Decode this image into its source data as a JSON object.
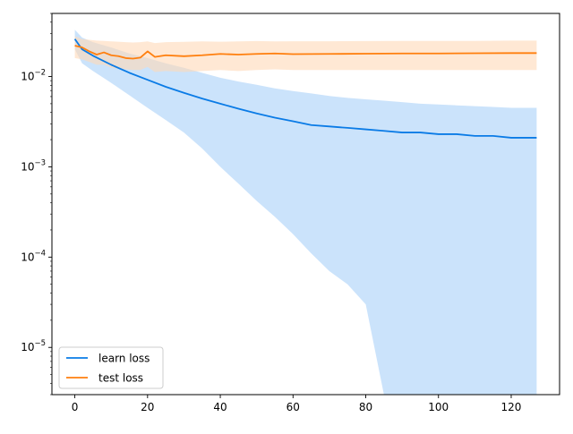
{
  "chart_data": {
    "type": "line",
    "title": "",
    "xlabel": "",
    "ylabel": "",
    "xlim": [
      -6.3,
      133.3
    ],
    "ylim": [
      3e-06,
      0.05
    ],
    "yscale": "log",
    "grid": false,
    "legend_position": "lower-left",
    "x_ticks": [
      0,
      20,
      40,
      60,
      80,
      100,
      120
    ],
    "x_tick_labels": [
      "0",
      "20",
      "40",
      "60",
      "80",
      "100",
      "120"
    ],
    "y_ticks": [
      1e-05,
      0.0001,
      0.001,
      0.01
    ],
    "y_tick_labels": [
      {
        "base": "10",
        "exp": "−5"
      },
      {
        "base": "10",
        "exp": "−4"
      },
      {
        "base": "10",
        "exp": "−3"
      },
      {
        "base": "10",
        "exp": "−2"
      }
    ],
    "series": [
      {
        "name": "learn loss",
        "color": "#0a7be6",
        "band_color": "#a8d1f8",
        "x": [
          0,
          2,
          5,
          10,
          15,
          20,
          25,
          30,
          35,
          40,
          45,
          50,
          55,
          60,
          65,
          70,
          75,
          80,
          85,
          90,
          95,
          100,
          105,
          110,
          115,
          120,
          127
        ],
        "y": [
          0.026,
          0.02,
          0.017,
          0.0135,
          0.011,
          0.0092,
          0.0077,
          0.0066,
          0.0057,
          0.005,
          0.0044,
          0.0039,
          0.0035,
          0.0032,
          0.0029,
          0.0028,
          0.0027,
          0.0026,
          0.0025,
          0.0024,
          0.0024,
          0.0023,
          0.0023,
          0.0022,
          0.0022,
          0.0021,
          0.0021
        ],
        "upper": [
          0.033,
          0.027,
          0.024,
          0.021,
          0.018,
          0.016,
          0.014,
          0.0125,
          0.011,
          0.0097,
          0.0088,
          0.0081,
          0.0074,
          0.0069,
          0.0065,
          0.0061,
          0.0058,
          0.0056,
          0.0054,
          0.0052,
          0.005,
          0.0049,
          0.0048,
          0.0047,
          0.0046,
          0.0045,
          0.0045
        ],
        "lower": [
          0.02,
          0.014,
          0.0115,
          0.0085,
          0.0062,
          0.0045,
          0.0033,
          0.0024,
          0.0016,
          0.001,
          0.00065,
          0.00042,
          0.00028,
          0.00018,
          0.00011,
          7e-05,
          5e-05,
          3e-05,
          3e-06,
          3e-06,
          3e-06,
          3e-06,
          3e-06,
          3e-06,
          3e-06,
          3e-06,
          3e-06
        ]
      },
      {
        "name": "test loss",
        "color": "#ff7f0e",
        "band_color": "#ffd9b8",
        "x": [
          0,
          2,
          4,
          6,
          8,
          10,
          12,
          14,
          16,
          18,
          20,
          22,
          25,
          30,
          35,
          40,
          45,
          50,
          55,
          60,
          70,
          80,
          90,
          100,
          110,
          120,
          127
        ],
        "y": [
          0.022,
          0.021,
          0.019,
          0.0175,
          0.0185,
          0.0172,
          0.0168,
          0.016,
          0.0158,
          0.0162,
          0.019,
          0.0165,
          0.0172,
          0.0168,
          0.0172,
          0.0178,
          0.0175,
          0.0178,
          0.018,
          0.0177,
          0.0178,
          0.0179,
          0.018,
          0.018,
          0.0181,
          0.0182,
          0.0182
        ],
        "upper": [
          0.028,
          0.026,
          0.0255,
          0.025,
          0.0248,
          0.0245,
          0.0243,
          0.024,
          0.0238,
          0.024,
          0.0245,
          0.0235,
          0.024,
          0.0242,
          0.0245,
          0.0243,
          0.0245,
          0.0247,
          0.0245,
          0.0246,
          0.0246,
          0.0247,
          0.0248,
          0.0248,
          0.0248,
          0.025,
          0.025
        ],
        "lower": [
          0.016,
          0.0155,
          0.0145,
          0.0135,
          0.0135,
          0.0125,
          0.0122,
          0.012,
          0.0118,
          0.0118,
          0.0128,
          0.0112,
          0.0115,
          0.0112,
          0.0115,
          0.0118,
          0.0115,
          0.0118,
          0.012,
          0.0118,
          0.0118,
          0.0118,
          0.0118,
          0.0118,
          0.0118,
          0.0118,
          0.0118
        ]
      }
    ]
  }
}
